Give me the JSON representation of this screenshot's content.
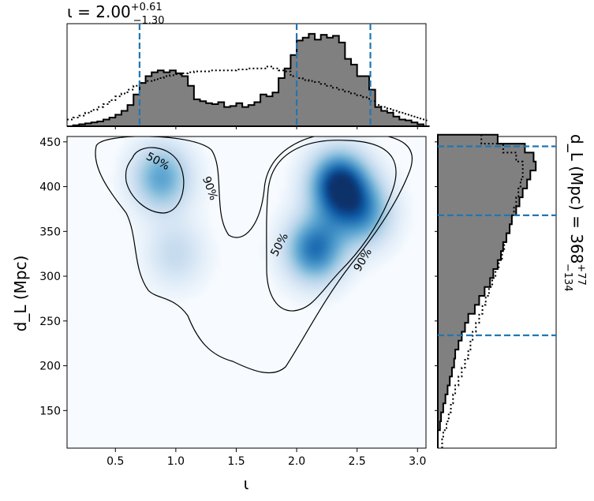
{
  "chart_data": {
    "type": "heatmap",
    "x_range": [
      0.1,
      3.07
    ],
    "y_range": [
      108,
      456
    ],
    "x_ticks": [
      0.5,
      1.0,
      1.5,
      2.0,
      2.5,
      3.0
    ],
    "x_tick_labels": [
      "0.5",
      "1.0",
      "1.5",
      "2.0",
      "2.5",
      "3.0"
    ],
    "y_ticks": [
      150,
      200,
      250,
      300,
      350,
      400,
      450
    ],
    "y_tick_labels": [
      "150",
      "200",
      "250",
      "300",
      "350",
      "400",
      "450"
    ],
    "xlabel": "ι",
    "ylabel": "d_L (Mpc)",
    "top_title": {
      "prefix": "ι = ",
      "value": "2.00",
      "upper": "+0.61",
      "lower": "−1.30"
    },
    "right_title": {
      "prefix": "d_L (Mpc) = ",
      "value": "368",
      "upper": "+77",
      "lower": "−134"
    },
    "colormap": [
      "#f7fbff",
      "#deebf7",
      "#c6dbef",
      "#9ecae1",
      "#6baed6",
      "#4292c6",
      "#2171b5",
      "#08519c",
      "#08306b"
    ],
    "density_modes": [
      {
        "x": 2.35,
        "y": 402,
        "weight": 1.0
      },
      {
        "x": 2.15,
        "y": 330,
        "weight": 0.75
      },
      {
        "x": 2.55,
        "y": 370,
        "weight": 0.55
      },
      {
        "x": 0.88,
        "y": 410,
        "weight": 0.55
      },
      {
        "x": 1.0,
        "y": 325,
        "weight": 0.25
      }
    ],
    "contours": [
      {
        "label": "50%",
        "label_position": {
          "x": 0.85,
          "y": 428
        },
        "label_rotation": 28
      },
      {
        "label": "90%",
        "label_position": {
          "x": 1.28,
          "y": 398
        },
        "label_rotation": 70
      },
      {
        "label": "50%",
        "label_position": {
          "x": 1.86,
          "y": 335
        },
        "label_rotation": -62
      },
      {
        "label": "90%",
        "label_position": {
          "x": 2.55,
          "y": 318
        },
        "label_rotation": -60
      }
    ],
    "iota_histogram": {
      "bins": [
        0.1,
        0.15,
        0.2,
        0.25,
        0.3,
        0.35,
        0.4,
        0.45,
        0.5,
        0.55,
        0.6,
        0.65,
        0.7,
        0.75,
        0.8,
        0.85,
        0.9,
        0.95,
        1.0,
        1.05,
        1.1,
        1.15,
        1.2,
        1.25,
        1.3,
        1.35,
        1.4,
        1.45,
        1.5,
        1.55,
        1.6,
        1.65,
        1.7,
        1.75,
        1.8,
        1.85,
        1.9,
        1.95,
        2.0,
        2.05,
        2.1,
        2.15,
        2.2,
        2.25,
        2.3,
        2.35,
        2.4,
        2.45,
        2.5,
        2.55,
        2.6,
        2.65,
        2.7,
        2.75,
        2.8,
        2.85,
        2.9,
        2.95,
        3.0,
        3.05
      ],
      "primary": [
        0.0,
        0.01,
        0.02,
        0.03,
        0.04,
        0.05,
        0.07,
        0.09,
        0.12,
        0.16,
        0.22,
        0.33,
        0.45,
        0.52,
        0.56,
        0.58,
        0.56,
        0.58,
        0.55,
        0.52,
        0.42,
        0.28,
        0.26,
        0.24,
        0.23,
        0.25,
        0.2,
        0.21,
        0.24,
        0.2,
        0.22,
        0.25,
        0.33,
        0.31,
        0.35,
        0.5,
        0.6,
        0.74,
        0.89,
        0.92,
        0.96,
        0.9,
        0.95,
        0.92,
        0.94,
        0.87,
        0.7,
        0.64,
        0.52,
        0.52,
        0.38,
        0.2,
        0.16,
        0.14,
        0.1,
        0.07,
        0.06,
        0.04,
        0.02,
        0.0
      ],
      "prior": [
        0.07,
        0.09,
        0.11,
        0.14,
        0.17,
        0.2,
        0.23,
        0.27,
        0.31,
        0.34,
        0.38,
        0.42,
        0.45,
        0.47,
        0.48,
        0.5,
        0.52,
        0.53,
        0.54,
        0.55,
        0.56,
        0.57,
        0.57,
        0.57,
        0.58,
        0.58,
        0.58,
        0.58,
        0.59,
        0.59,
        0.6,
        0.6,
        0.6,
        0.62,
        0.6,
        0.58,
        0.57,
        0.52,
        0.5,
        0.48,
        0.47,
        0.46,
        0.44,
        0.42,
        0.4,
        0.38,
        0.36,
        0.34,
        0.32,
        0.3,
        0.26,
        0.22,
        0.2,
        0.18,
        0.16,
        0.14,
        0.12,
        0.1,
        0.08,
        0.06
      ],
      "quantiles": [
        0.7,
        2.0,
        2.61
      ]
    },
    "dl_histogram": {
      "bins": [
        108,
        118,
        128,
        138,
        148,
        158,
        168,
        178,
        188,
        198,
        208,
        218,
        228,
        238,
        248,
        258,
        268,
        278,
        288,
        298,
        308,
        318,
        328,
        338,
        348,
        358,
        368,
        378,
        388,
        398,
        408,
        418,
        428,
        438,
        448
      ],
      "primary": [
        0.0,
        0.0,
        0.02,
        0.03,
        0.05,
        0.07,
        0.09,
        0.11,
        0.13,
        0.15,
        0.16,
        0.19,
        0.22,
        0.25,
        0.28,
        0.34,
        0.38,
        0.43,
        0.48,
        0.51,
        0.55,
        0.58,
        0.6,
        0.63,
        0.66,
        0.68,
        0.72,
        0.75,
        0.78,
        0.82,
        0.85,
        0.9,
        0.88,
        0.8,
        0.55
      ],
      "prior": [
        0.04,
        0.05,
        0.08,
        0.1,
        0.12,
        0.14,
        0.16,
        0.19,
        0.22,
        0.25,
        0.28,
        0.3,
        0.32,
        0.35,
        0.38,
        0.41,
        0.44,
        0.47,
        0.5,
        0.53,
        0.56,
        0.59,
        0.61,
        0.63,
        0.66,
        0.68,
        0.7,
        0.72,
        0.74,
        0.76,
        0.78,
        0.78,
        0.72,
        0.6,
        0.4
      ],
      "quantiles": [
        234,
        368,
        445
      ]
    }
  }
}
